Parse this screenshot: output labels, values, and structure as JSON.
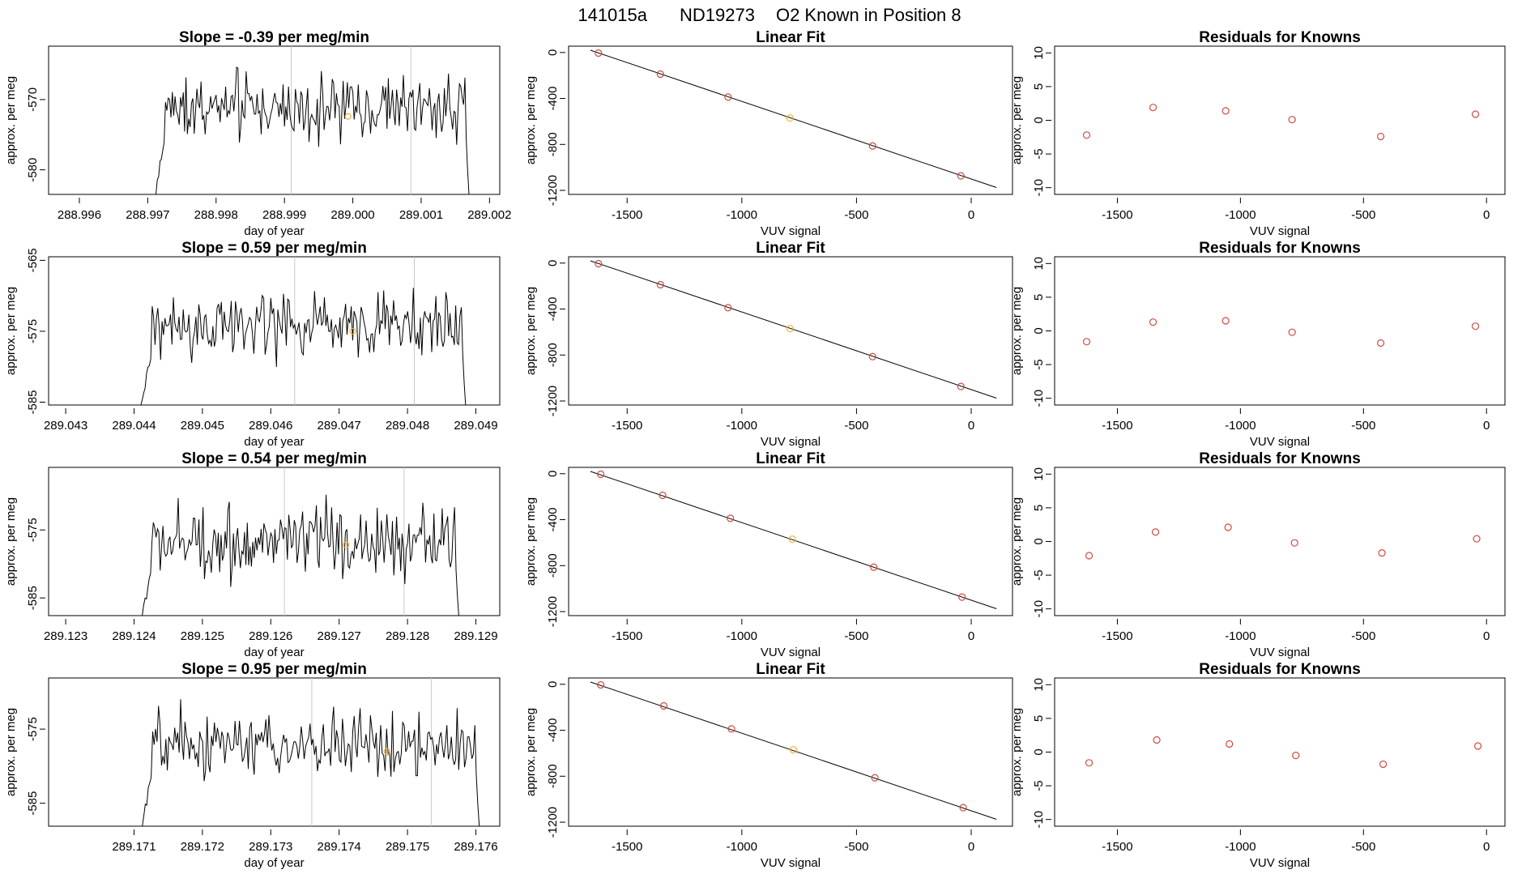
{
  "figure": {
    "run_id": "141015a",
    "cylinder": "ND19273",
    "known_label": "O2 Known in Position  8"
  },
  "colors": {
    "line": "#000000",
    "points": "#cd4a3f",
    "highlight": "#f1b13b",
    "guide": "#c8c8c8"
  },
  "chart_data": [
    {
      "type": "line",
      "row": 0,
      "title": "Slope =  -0.39  per meg/min",
      "xlabel": "day of year",
      "ylabel": "approx. per meg",
      "xlim": [
        288.99555,
        289.00215
      ],
      "ylim": [
        -583.5,
        -562.4
      ],
      "xticks": [
        "288.996",
        "288.997",
        "288.998",
        "288.999",
        "289.000",
        "289.001",
        "289.002"
      ],
      "yticks": [
        "-580",
        "-570"
      ],
      "start_day": 288.9971,
      "end_day": 289.0017,
      "level": -571.2,
      "amplitude": 2.6,
      "vlines": [
        288.9991,
        289.00085
      ],
      "highlight_point": {
        "x": 288.99993,
        "y": -572.4
      }
    },
    {
      "type": "line",
      "row": 1,
      "title": "Slope =  0.59  per meg/min",
      "xlabel": "day of year",
      "ylabel": "approx. per meg",
      "xlim": [
        289.04275,
        289.04935
      ],
      "ylim": [
        -585.4,
        -564.5
      ],
      "xticks": [
        "289.043",
        "289.044",
        "289.045",
        "289.046",
        "289.047",
        "289.048",
        "289.049"
      ],
      "yticks": [
        "-585",
        "-575",
        "-565"
      ],
      "start_day": 289.0441,
      "end_day": 289.04885,
      "level": -574.3,
      "amplitude": 2.8,
      "vlines": [
        289.04635,
        289.0481
      ],
      "highlight_point": {
        "x": 289.0472,
        "y": -575.0
      }
    },
    {
      "type": "line",
      "row": 2,
      "title": "Slope =  0.54  per meg/min",
      "xlabel": "day of year",
      "ylabel": "approx. per meg",
      "xlim": [
        289.12275,
        289.12935
      ],
      "ylim": [
        -587.6,
        -565.8
      ],
      "xticks": [
        "289.123",
        "289.124",
        "289.125",
        "289.126",
        "289.127",
        "289.128",
        "289.129"
      ],
      "yticks": [
        "-585",
        "-575"
      ],
      "start_day": 289.1241,
      "end_day": 289.12875,
      "level": -577.0,
      "amplitude": 2.9,
      "vlines": [
        289.1262,
        289.12795
      ],
      "highlight_point": {
        "x": 289.1271,
        "y": -577.2
      }
    },
    {
      "type": "line",
      "row": 3,
      "title": "Slope =  0.95  per meg/min",
      "xlabel": "day of year",
      "ylabel": "approx. per meg",
      "xlim": [
        289.16975,
        289.17635
      ],
      "ylim": [
        -588.1,
        -568.1
      ],
      "xticks": [
        "289.171",
        "289.172",
        "289.173",
        "289.174",
        "289.175",
        "289.176"
      ],
      "yticks": [
        "-585",
        "-575"
      ],
      "start_day": 289.1711,
      "end_day": 289.17605,
      "level": -577.3,
      "amplitude": 2.5,
      "vlines": [
        289.1736,
        289.17535
      ],
      "highlight_point": {
        "x": 289.1747,
        "y": -578.0
      }
    },
    {
      "type": "scatter",
      "row": 0,
      "title": "Linear Fit",
      "xlabel": "VUV signal",
      "ylabel": "approx. per meg",
      "xlim": [
        -1755,
        180
      ],
      "ylim": [
        -1235,
        55
      ],
      "xticks": [
        -1500,
        -1000,
        -500,
        0
      ],
      "yticks": [
        0,
        -400,
        -800,
        -1200
      ],
      "fit_line": {
        "x": [
          -1660,
          110
        ],
        "y": [
          20,
          -1175
        ]
      },
      "points": [
        {
          "x": -1625,
          "y": -5
        },
        {
          "x": -1355,
          "y": -188
        },
        {
          "x": -1060,
          "y": -388
        },
        {
          "x": -790,
          "y": -570
        },
        {
          "x": -430,
          "y": -814
        },
        {
          "x": -45,
          "y": -1074
        }
      ],
      "highlight_index": 3
    },
    {
      "type": "scatter",
      "row": 1,
      "title": "Linear Fit",
      "xlabel": "VUV signal",
      "ylabel": "approx. per meg",
      "xlim": [
        -1755,
        180
      ],
      "ylim": [
        -1235,
        55
      ],
      "xticks": [
        -1500,
        -1000,
        -500,
        0
      ],
      "yticks": [
        0,
        -400,
        -800,
        -1200
      ],
      "fit_line": {
        "x": [
          -1660,
          110
        ],
        "y": [
          20,
          -1175
        ]
      },
      "points": [
        {
          "x": -1625,
          "y": -5
        },
        {
          "x": -1355,
          "y": -188
        },
        {
          "x": -1060,
          "y": -388
        },
        {
          "x": -790,
          "y": -570
        },
        {
          "x": -430,
          "y": -814
        },
        {
          "x": -45,
          "y": -1074
        }
      ],
      "highlight_index": 3
    },
    {
      "type": "scatter",
      "row": 2,
      "title": "Linear Fit",
      "xlabel": "VUV signal",
      "ylabel": "approx. per meg",
      "xlim": [
        -1755,
        180
      ],
      "ylim": [
        -1235,
        55
      ],
      "xticks": [
        -1500,
        -1000,
        -500,
        0
      ],
      "yticks": [
        0,
        -400,
        -800,
        -1200
      ],
      "fit_line": {
        "x": [
          -1660,
          110
        ],
        "y": [
          20,
          -1175
        ]
      },
      "points": [
        {
          "x": -1615,
          "y": -5
        },
        {
          "x": -1345,
          "y": -188
        },
        {
          "x": -1050,
          "y": -388
        },
        {
          "x": -780,
          "y": -570
        },
        {
          "x": -425,
          "y": -814
        },
        {
          "x": -40,
          "y": -1074
        }
      ],
      "highlight_index": 3
    },
    {
      "type": "scatter",
      "row": 3,
      "title": "Linear Fit",
      "xlabel": "VUV signal",
      "ylabel": "approx. per meg",
      "xlim": [
        -1755,
        180
      ],
      "ylim": [
        -1235,
        55
      ],
      "xticks": [
        -1500,
        -1000,
        -500,
        0
      ],
      "yticks": [
        0,
        -400,
        -800,
        -1200
      ],
      "fit_line": {
        "x": [
          -1660,
          110
        ],
        "y": [
          20,
          -1175
        ]
      },
      "points": [
        {
          "x": -1615,
          "y": -5
        },
        {
          "x": -1340,
          "y": -188
        },
        {
          "x": -1045,
          "y": -388
        },
        {
          "x": -775,
          "y": -570
        },
        {
          "x": -420,
          "y": -814
        },
        {
          "x": -35,
          "y": -1074
        }
      ],
      "highlight_index": 3
    },
    {
      "type": "scatter",
      "row": 0,
      "title": "Residuals for Knowns",
      "xlabel": "VUV signal",
      "ylabel": "approx. per meg",
      "xlim": [
        -1755,
        75
      ],
      "ylim": [
        -11,
        11
      ],
      "xticks": [
        -1500,
        -1000,
        -500,
        0
      ],
      "yticks": [
        10,
        5,
        0,
        -5,
        -10
      ],
      "points": [
        {
          "x": -1625,
          "y": -2.2
        },
        {
          "x": -1355,
          "y": 1.9
        },
        {
          "x": -1060,
          "y": 1.4
        },
        {
          "x": -790,
          "y": 0.1
        },
        {
          "x": -430,
          "y": -2.4
        },
        {
          "x": -45,
          "y": 0.9
        }
      ]
    },
    {
      "type": "scatter",
      "row": 1,
      "title": "Residuals for Knowns",
      "xlabel": "VUV signal",
      "ylabel": "approx. per meg",
      "xlim": [
        -1755,
        75
      ],
      "ylim": [
        -11,
        11
      ],
      "xticks": [
        -1500,
        -1000,
        -500,
        0
      ],
      "yticks": [
        10,
        5,
        0,
        -5,
        -10
      ],
      "points": [
        {
          "x": -1625,
          "y": -1.6
        },
        {
          "x": -1355,
          "y": 1.3
        },
        {
          "x": -1060,
          "y": 1.5
        },
        {
          "x": -790,
          "y": -0.2
        },
        {
          "x": -430,
          "y": -1.8
        },
        {
          "x": -45,
          "y": 0.7
        }
      ]
    },
    {
      "type": "scatter",
      "row": 2,
      "title": "Residuals for Knowns",
      "xlabel": "VUV signal",
      "ylabel": "approx. per meg",
      "xlim": [
        -1755,
        75
      ],
      "ylim": [
        -11,
        11
      ],
      "xticks": [
        -1500,
        -1000,
        -500,
        0
      ],
      "yticks": [
        10,
        5,
        0,
        -5,
        -10
      ],
      "points": [
        {
          "x": -1615,
          "y": -2.1
        },
        {
          "x": -1345,
          "y": 1.4
        },
        {
          "x": -1050,
          "y": 2.1
        },
        {
          "x": -780,
          "y": -0.2
        },
        {
          "x": -425,
          "y": -1.7
        },
        {
          "x": -40,
          "y": 0.4
        }
      ]
    },
    {
      "type": "scatter",
      "row": 3,
      "title": "Residuals for Knowns",
      "xlabel": "VUV signal",
      "ylabel": "approx. per meg",
      "xlim": [
        -1755,
        75
      ],
      "ylim": [
        -11,
        11
      ],
      "xticks": [
        -1500,
        -1000,
        -500,
        0
      ],
      "yticks": [
        10,
        5,
        0,
        -5,
        -10
      ],
      "points": [
        {
          "x": -1615,
          "y": -1.6
        },
        {
          "x": -1340,
          "y": 1.8
        },
        {
          "x": -1045,
          "y": 1.2
        },
        {
          "x": -775,
          "y": -0.5
        },
        {
          "x": -420,
          "y": -1.8
        },
        {
          "x": -35,
          "y": 0.9
        }
      ]
    }
  ]
}
